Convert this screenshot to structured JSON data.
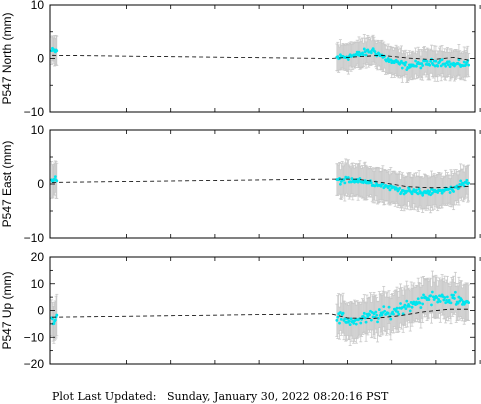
{
  "footer": {
    "label": "Plot Last Updated:",
    "timestamp": "Sunday, January 30, 2022 08:20:16 PST"
  },
  "colors": {
    "points": "#00e5ee",
    "error_bars": "#c8c8c8",
    "trend": "#000000",
    "frame": "#000000"
  },
  "chart_data": [
    {
      "type": "scatter",
      "title": "",
      "xlabel": "",
      "ylabel": "P547 North (mm)",
      "ylim": [
        -10,
        10
      ],
      "yticks": [
        -10,
        0,
        10
      ],
      "grid": false,
      "legend": "none",
      "error_bar_mm": 2.5,
      "early_cluster": {
        "x_start": 0.4,
        "x_end": 1.6,
        "mean": 1.4,
        "spread": 0.9
      },
      "late_cluster": {
        "x_start": 67.5,
        "x_end": 98.5,
        "points": [
          {
            "x": 68,
            "y": 0.2
          },
          {
            "x": 72,
            "y": 0.6
          },
          {
            "x": 76,
            "y": 1.5
          },
          {
            "x": 80,
            "y": -0.5
          },
          {
            "x": 84,
            "y": -1.4
          },
          {
            "x": 88,
            "y": -1.0
          },
          {
            "x": 92,
            "y": -0.6
          },
          {
            "x": 95,
            "y": -1.2
          },
          {
            "x": 98,
            "y": -1.0
          }
        ],
        "spread": 1.0
      },
      "trend": [
        {
          "x": 0.5,
          "y": 0.6
        },
        {
          "x": 66,
          "y": 0.0
        },
        {
          "x": 72,
          "y": 0.3
        },
        {
          "x": 78,
          "y": 0.6
        },
        {
          "x": 84,
          "y": 0.1
        },
        {
          "x": 90,
          "y": -0.2
        },
        {
          "x": 95,
          "y": 0.2
        },
        {
          "x": 99,
          "y": -0.4
        }
      ]
    },
    {
      "type": "scatter",
      "title": "",
      "xlabel": "",
      "ylabel": "P547 East (mm)",
      "ylim": [
        -10,
        10
      ],
      "yticks": [
        -10,
        0,
        10
      ],
      "grid": false,
      "legend": "none",
      "error_bar_mm": 3.0,
      "early_cluster": {
        "x_start": 0.4,
        "x_end": 1.6,
        "mean": 0.8,
        "spread": 1.0
      },
      "late_cluster": {
        "x_start": 67.5,
        "x_end": 98.5,
        "points": [
          {
            "x": 68,
            "y": 0.6
          },
          {
            "x": 72,
            "y": 0.8
          },
          {
            "x": 76,
            "y": 0.2
          },
          {
            "x": 80,
            "y": -0.6
          },
          {
            "x": 84,
            "y": -1.4
          },
          {
            "x": 88,
            "y": -1.6
          },
          {
            "x": 92,
            "y": -1.3
          },
          {
            "x": 95,
            "y": -0.8
          },
          {
            "x": 98,
            "y": 0.3
          }
        ],
        "spread": 0.9
      },
      "trend": [
        {
          "x": 0.5,
          "y": 0.3
        },
        {
          "x": 66,
          "y": 0.9
        },
        {
          "x": 72,
          "y": 0.9
        },
        {
          "x": 78,
          "y": 0.3
        },
        {
          "x": 84,
          "y": -0.5
        },
        {
          "x": 90,
          "y": -0.7
        },
        {
          "x": 95,
          "y": -0.6
        },
        {
          "x": 99,
          "y": -0.4
        }
      ]
    },
    {
      "type": "scatter",
      "title": "",
      "xlabel": "",
      "ylabel": "P547 Up (mm)",
      "ylim": [
        -20,
        20
      ],
      "yticks": [
        -20,
        -10,
        0,
        10,
        20
      ],
      "grid": false,
      "legend": "none",
      "error_bar_mm": 7.0,
      "early_cluster": {
        "x_start": 0.4,
        "x_end": 1.6,
        "mean": -3.0,
        "spread": 3.5
      },
      "late_cluster": {
        "x_start": 67.5,
        "x_end": 98.5,
        "points": [
          {
            "x": 68,
            "y": -3.0
          },
          {
            "x": 72,
            "y": -4.0
          },
          {
            "x": 76,
            "y": -2.0
          },
          {
            "x": 80,
            "y": -1.0
          },
          {
            "x": 84,
            "y": 2.0
          },
          {
            "x": 88,
            "y": 4.0
          },
          {
            "x": 92,
            "y": 5.0
          },
          {
            "x": 95,
            "y": 4.0
          },
          {
            "x": 98,
            "y": 3.0
          }
        ],
        "spread": 3.5
      },
      "trend": [
        {
          "x": 0.5,
          "y": -2.5
        },
        {
          "x": 66,
          "y": -1.2
        },
        {
          "x": 70,
          "y": -2.8
        },
        {
          "x": 76,
          "y": -3.0
        },
        {
          "x": 82,
          "y": -2.0
        },
        {
          "x": 88,
          "y": -0.5
        },
        {
          "x": 94,
          "y": 0.5
        },
        {
          "x": 99,
          "y": 0.5
        }
      ]
    }
  ]
}
